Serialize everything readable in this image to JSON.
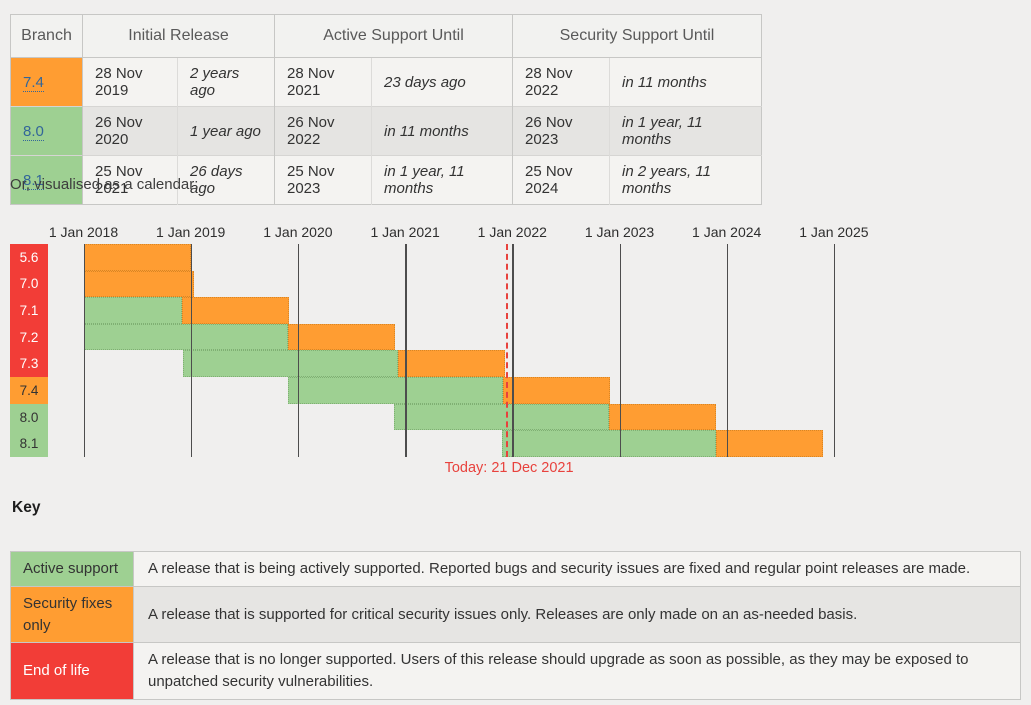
{
  "support_table": {
    "headers": {
      "branch": "Branch",
      "initial": "Initial Release",
      "active": "Active Support Until",
      "security": "Security Support Until"
    },
    "rows": [
      {
        "branch": "7.4",
        "branch_color": "orange",
        "initial_date": "28 Nov 2019",
        "initial_rel": "2 years ago",
        "active_date": "28 Nov 2021",
        "active_rel": "23 days ago",
        "security_date": "28 Nov 2022",
        "security_rel": "in 11 months"
      },
      {
        "branch": "8.0",
        "branch_color": "green",
        "initial_date": "26 Nov 2020",
        "initial_rel": "1 year ago",
        "active_date": "26 Nov 2022",
        "active_rel": "in 11 months",
        "security_date": "26 Nov 2023",
        "security_rel": "in 1 year, 11 months"
      },
      {
        "branch": "8.1",
        "branch_color": "green",
        "initial_date": "25 Nov 2021",
        "initial_rel": "26 days ago",
        "active_date": "25 Nov 2023",
        "active_rel": "in 1 year, 11 months",
        "security_date": "25 Nov 2024",
        "security_rel": "in 2 years, 11 months"
      }
    ]
  },
  "calendar_intro": "Or, visualised as a calendar:",
  "chart_data": {
    "type": "gantt-timeline",
    "x_ticks": [
      "1 Jan 2018",
      "1 Jan 2019",
      "1 Jan 2020",
      "1 Jan 2021",
      "1 Jan 2022",
      "1 Jan 2023",
      "1 Jan 2024",
      "1 Jan 2025"
    ],
    "x_range_years": [
      2018,
      2025
    ],
    "today": {
      "label": "Today: 21 Dec 2021",
      "years_from_start": 3.97
    },
    "segment_types": {
      "active": "Active support",
      "security": "Security fixes only",
      "eol": "End of life"
    },
    "rows": [
      {
        "branch": "5.6",
        "label_color": "red",
        "segments": [
          {
            "type": "security",
            "start": 0,
            "end": 1.0
          }
        ]
      },
      {
        "branch": "7.0",
        "label_color": "red",
        "segments": [
          {
            "type": "security",
            "start": 0,
            "end": 1.03
          }
        ]
      },
      {
        "branch": "7.1",
        "label_color": "red",
        "segments": [
          {
            "type": "active",
            "start": 0,
            "end": 0.92
          },
          {
            "type": "security",
            "start": 0.92,
            "end": 1.92
          }
        ]
      },
      {
        "branch": "7.2",
        "label_color": "red",
        "segments": [
          {
            "type": "active",
            "start": 0,
            "end": 1.91
          },
          {
            "type": "security",
            "start": 1.91,
            "end": 2.91
          }
        ]
      },
      {
        "branch": "7.3",
        "label_color": "red",
        "segments": [
          {
            "type": "active",
            "start": 0.93,
            "end": 2.93
          },
          {
            "type": "security",
            "start": 2.93,
            "end": 3.93
          }
        ]
      },
      {
        "branch": "7.4",
        "label_color": "orange",
        "segments": [
          {
            "type": "active",
            "start": 1.91,
            "end": 3.91
          },
          {
            "type": "security",
            "start": 3.91,
            "end": 4.91
          }
        ]
      },
      {
        "branch": "8.0",
        "label_color": "green",
        "segments": [
          {
            "type": "active",
            "start": 2.9,
            "end": 4.9
          },
          {
            "type": "security",
            "start": 4.9,
            "end": 5.9
          }
        ]
      },
      {
        "branch": "8.1",
        "label_color": "green",
        "segments": [
          {
            "type": "active",
            "start": 3.9,
            "end": 5.9
          },
          {
            "type": "security",
            "start": 5.9,
            "end": 6.9
          }
        ]
      }
    ]
  },
  "key": {
    "heading": "Key",
    "rows": [
      {
        "label": "Active support",
        "color": "green",
        "description": "A release that is being actively supported. Reported bugs and security issues are fixed and regular point releases are made."
      },
      {
        "label": "Security fixes only",
        "color": "orange",
        "description": "A release that is supported for critical security issues only. Releases are only made on an as-needed basis."
      },
      {
        "label": "End of life",
        "color": "red",
        "description": "A release that is no longer supported. Users of this release should upgrade as soon as possible, as they may be exposed to unpatched security vulnerabilities."
      }
    ]
  },
  "colors": {
    "active_green": "#9ed092",
    "security_orange": "#ff9d32",
    "eol_red": "#f23d37",
    "today_red": "#e8423d",
    "link_blue": "#336699",
    "page_bg": "#f0efee"
  }
}
